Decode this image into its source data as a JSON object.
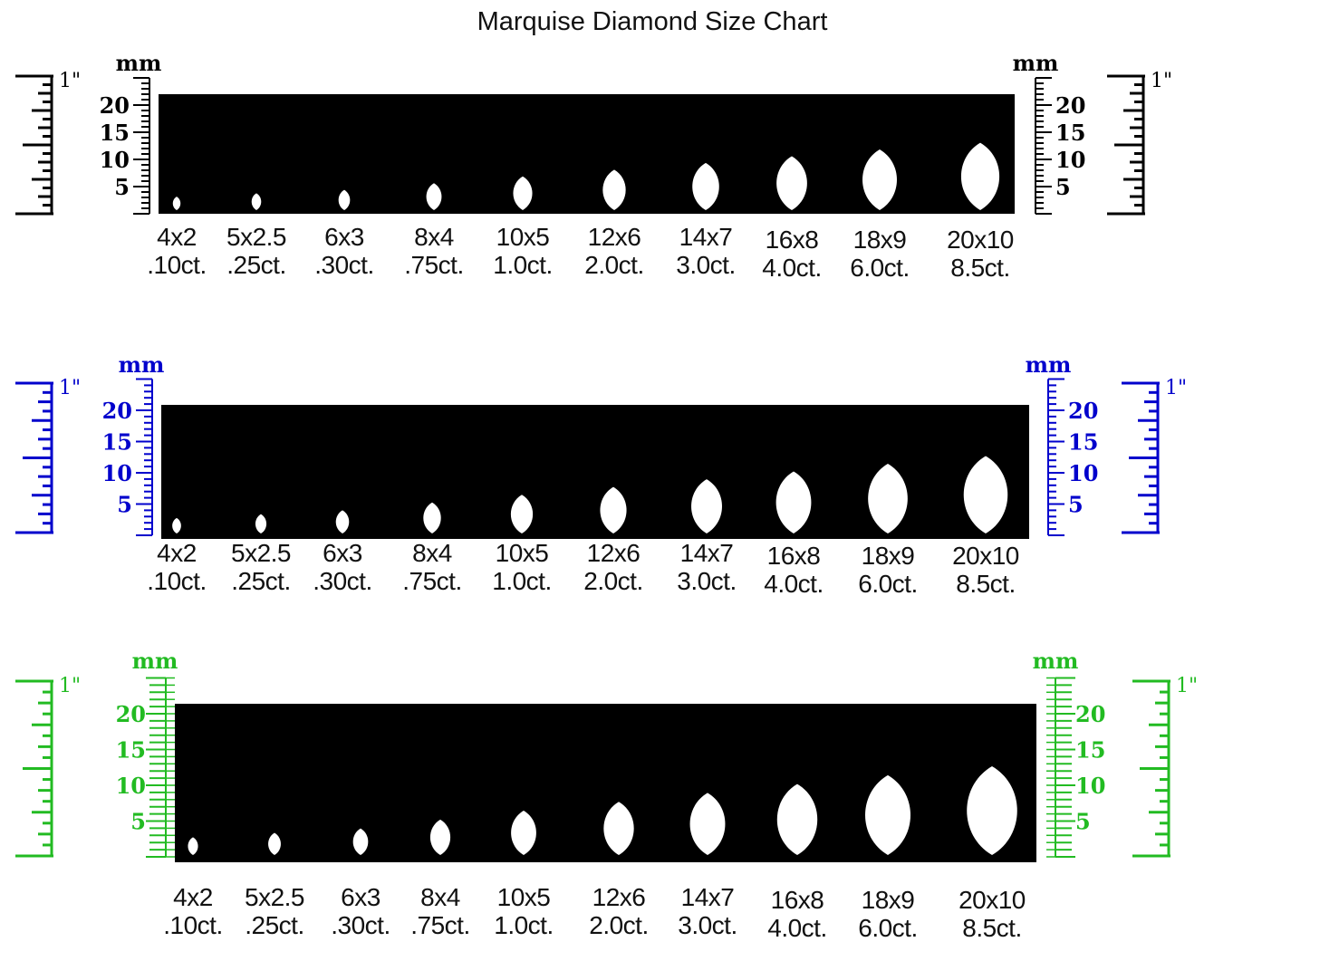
{
  "title": "Marquise Diamond Size Chart",
  "ruler": {
    "mm_label": "mm",
    "inch_label": "1\"",
    "mm_ticks": [
      "5",
      "10",
      "15",
      "20"
    ]
  },
  "sizes": [
    {
      "size": "4x2",
      "carat": ".10ct.",
      "length_mm": 4,
      "width_mm": 2
    },
    {
      "size": "5x2.5",
      "carat": ".25ct.",
      "length_mm": 5,
      "width_mm": 2.5
    },
    {
      "size": "6x3",
      "carat": ".30ct.",
      "length_mm": 6,
      "width_mm": 3
    },
    {
      "size": "8x4",
      "carat": ".75ct.",
      "length_mm": 8,
      "width_mm": 4
    },
    {
      "size": "10x5",
      "carat": "1.0ct.",
      "length_mm": 10,
      "width_mm": 5
    },
    {
      "size": "12x6",
      "carat": "2.0ct.",
      "length_mm": 12,
      "width_mm": 6
    },
    {
      "size": "14x7",
      "carat": "3.0ct.",
      "length_mm": 14,
      "width_mm": 7
    },
    {
      "size": "16x8",
      "carat": "4.0ct.",
      "length_mm": 16,
      "width_mm": 8
    },
    {
      "size": "18x9",
      "carat": "6.0ct.",
      "length_mm": 18,
      "width_mm": 9
    },
    {
      "size": "20x10",
      "carat": "8.5ct.",
      "length_mm": 20,
      "width_mm": 10
    }
  ],
  "panels": [
    {
      "ruler_color": "#000000"
    },
    {
      "ruler_color": "#0000cc"
    },
    {
      "ruler_color": "#22bb22"
    }
  ]
}
